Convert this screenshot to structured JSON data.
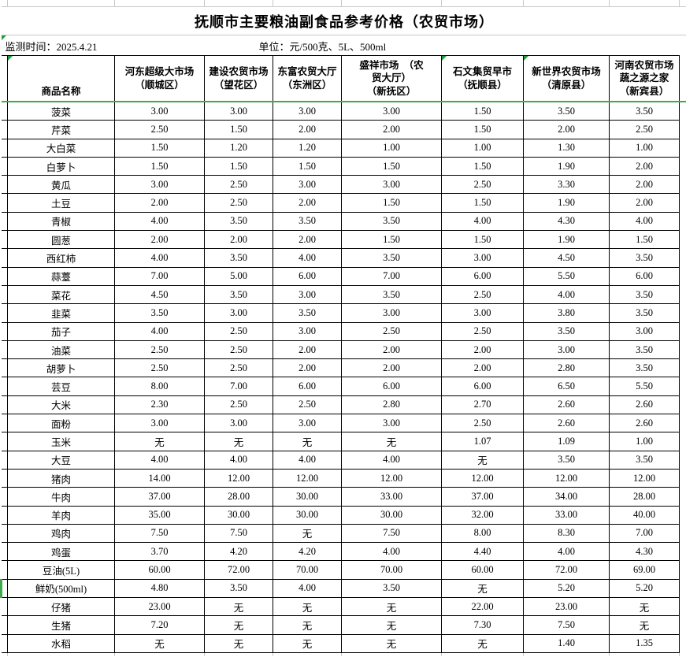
{
  "header": {
    "title": "抚顺市主要粮油副食品参考价格（农贸市场）",
    "monitor_time": "监测时间：2025.4.21",
    "unit": "单位：元/500克、5L、500ml"
  },
  "table": {
    "product_header": "商品名称",
    "markets": [
      {
        "name": "河东超级大市场\n（顺城区）",
        "flag": false
      },
      {
        "name": "建设农贸市场\n（望花区）",
        "flag": false
      },
      {
        "name": "东富农贸大厅\n（东洲区）",
        "flag": false
      },
      {
        "name": "盛祥市场　（农\n贸大厅）\n（新抚区）",
        "flag": false
      },
      {
        "name": "石文集贸早市\n（抚顺县）",
        "flag": true
      },
      {
        "name": "新世界农贸市场\n（清原县）",
        "flag": true
      },
      {
        "name": "河南农贸市场\n蔬之源之家\n（新宾县）",
        "flag": false
      }
    ],
    "rows": [
      {
        "name": "菠菜",
        "values": [
          "3.00",
          "3.00",
          "3.00",
          "3.00",
          "1.50",
          "3.50",
          "3.50"
        ],
        "mark": false
      },
      {
        "name": "芹菜",
        "values": [
          "2.50",
          "1.50",
          "2.00",
          "2.00",
          "1.50",
          "2.00",
          "2.50"
        ],
        "mark": false
      },
      {
        "name": "大白菜",
        "values": [
          "1.50",
          "1.20",
          "1.20",
          "1.00",
          "1.00",
          "1.30",
          "1.00"
        ],
        "mark": false
      },
      {
        "name": "白萝卜",
        "values": [
          "1.50",
          "1.50",
          "1.50",
          "1.50",
          "1.50",
          "1.90",
          "2.00"
        ],
        "mark": false
      },
      {
        "name": "黄瓜",
        "values": [
          "3.00",
          "2.50",
          "3.00",
          "3.00",
          "2.50",
          "3.30",
          "2.00"
        ],
        "mark": false
      },
      {
        "name": "土豆",
        "values": [
          "2.00",
          "2.50",
          "2.00",
          "1.50",
          "1.50",
          "1.90",
          "2.00"
        ],
        "mark": false
      },
      {
        "name": "青椒",
        "values": [
          "4.00",
          "3.50",
          "3.50",
          "3.50",
          "4.00",
          "4.30",
          "4.00"
        ],
        "mark": false
      },
      {
        "name": "圆葱",
        "values": [
          "2.00",
          "2.00",
          "2.00",
          "1.50",
          "1.50",
          "1.90",
          "1.50"
        ],
        "mark": false
      },
      {
        "name": "西红柿",
        "values": [
          "4.00",
          "3.50",
          "4.00",
          "3.50",
          "3.00",
          "4.50",
          "3.50"
        ],
        "mark": false
      },
      {
        "name": "蒜薹",
        "values": [
          "7.00",
          "5.00",
          "6.00",
          "7.00",
          "6.00",
          "5.50",
          "6.00"
        ],
        "mark": false
      },
      {
        "name": "菜花",
        "values": [
          "4.50",
          "3.50",
          "3.00",
          "3.50",
          "2.50",
          "4.00",
          "3.50"
        ],
        "mark": false
      },
      {
        "name": "韭菜",
        "values": [
          "3.50",
          "3.00",
          "3.50",
          "3.00",
          "3.00",
          "3.80",
          "3.50"
        ],
        "mark": false
      },
      {
        "name": "茄子",
        "values": [
          "4.00",
          "2.50",
          "3.00",
          "2.50",
          "2.50",
          "3.50",
          "3.00"
        ],
        "mark": false
      },
      {
        "name": "油菜",
        "values": [
          "2.50",
          "2.50",
          "2.00",
          "2.00",
          "2.00",
          "3.00",
          "3.50"
        ],
        "mark": false
      },
      {
        "name": "胡萝卜",
        "values": [
          "2.50",
          "2.50",
          "2.00",
          "2.00",
          "2.00",
          "2.80",
          "3.50"
        ],
        "mark": false
      },
      {
        "name": "芸豆",
        "values": [
          "8.00",
          "7.00",
          "6.00",
          "6.00",
          "6.00",
          "6.50",
          "5.50"
        ],
        "mark": false
      },
      {
        "name": "大米",
        "values": [
          "2.30",
          "2.50",
          "2.50",
          "2.80",
          "2.70",
          "2.60",
          "2.60"
        ],
        "mark": false
      },
      {
        "name": "面粉",
        "values": [
          "3.00",
          "3.00",
          "3.00",
          "3.00",
          "2.50",
          "2.60",
          "2.60"
        ],
        "mark": false
      },
      {
        "name": "玉米",
        "values": [
          "无",
          "无",
          "无",
          "无",
          "1.07",
          "1.09",
          "1.00"
        ],
        "mark": false
      },
      {
        "name": "大豆",
        "values": [
          "4.00",
          "4.00",
          "4.00",
          "4.00",
          "无",
          "3.50",
          "3.50"
        ],
        "mark": false
      },
      {
        "name": "猪肉",
        "values": [
          "14.00",
          "12.00",
          "12.00",
          "12.00",
          "12.00",
          "12.00",
          "12.00"
        ],
        "mark": false
      },
      {
        "name": "牛肉",
        "values": [
          "37.00",
          "28.00",
          "30.00",
          "33.00",
          "37.00",
          "34.00",
          "28.00"
        ],
        "mark": false
      },
      {
        "name": "羊肉",
        "values": [
          "35.00",
          "30.00",
          "30.00",
          "30.00",
          "32.00",
          "33.00",
          "40.00"
        ],
        "mark": false
      },
      {
        "name": "鸡肉",
        "values": [
          "7.50",
          "7.50",
          "无",
          "7.50",
          "8.00",
          "8.30",
          "7.00"
        ],
        "mark": false
      },
      {
        "name": "鸡蛋",
        "values": [
          "3.70",
          "4.20",
          "4.20",
          "4.00",
          "4.40",
          "4.00",
          "4.30"
        ],
        "mark": false
      },
      {
        "name": "豆油(5L)",
        "values": [
          "60.00",
          "72.00",
          "70.00",
          "70.00",
          "60.00",
          "72.00",
          "69.00"
        ],
        "mark": false
      },
      {
        "name": "鲜奶(500ml)",
        "values": [
          "4.80",
          "3.50",
          "4.00",
          "3.50",
          "无",
          "5.20",
          "5.20"
        ],
        "mark": true
      },
      {
        "name": "仔猪",
        "values": [
          "23.00",
          "无",
          "无",
          "无",
          "22.00",
          "23.00",
          "无"
        ],
        "mark": false
      },
      {
        "name": "生猪",
        "values": [
          "7.20",
          "无",
          "无",
          "无",
          "7.30",
          "7.50",
          "无"
        ],
        "mark": false
      },
      {
        "name": "水稻",
        "values": [
          "无",
          "无",
          "无",
          "无",
          "无",
          "1.40",
          "1.35"
        ],
        "mark": false
      }
    ]
  },
  "colors": {
    "accent_green": "#3fa94d",
    "flag_green": "#1f9e3e",
    "grid_black": "#000000",
    "grid_grey": "#c8c8c8"
  }
}
